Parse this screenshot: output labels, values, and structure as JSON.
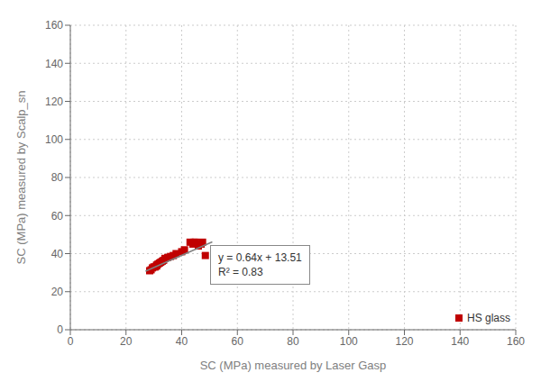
{
  "chart_data": {
    "type": "scatter",
    "xlabel": "SC (MPa) measured by Laser Gasp",
    "ylabel": "SC (MPa) measured by Scalp_sn",
    "series": [
      {
        "name": "HS glass",
        "type": "scatter",
        "marker": "square",
        "color": "#C00000",
        "x": [
          28.5,
          29,
          29.5,
          30,
          30.5,
          31,
          31,
          31.5,
          32,
          32.5,
          33,
          33.5,
          34,
          35,
          36,
          37,
          38,
          40,
          41,
          43,
          44,
          44.5,
          45,
          46,
          47,
          47.5,
          48.5
        ],
        "values": [
          31,
          31.5,
          32.5,
          33,
          33,
          33.5,
          34,
          34.5,
          35,
          35.5,
          36,
          36.5,
          37.5,
          38,
          38.5,
          39,
          40,
          41,
          42,
          46,
          45,
          46,
          46,
          44,
          45,
          46,
          39
        ]
      },
      {
        "type": "line",
        "line_style": "solid",
        "color": "#808080",
        "x": [
          27,
          51
        ],
        "values": [
          30.79,
          46.15
        ]
      }
    ],
    "annotation": "y = 0.64x + 13.51\nR² = 0.83",
    "xlim": [
      0,
      160
    ],
    "ylim": [
      0,
      160
    ],
    "xticks": [
      0,
      20,
      40,
      60,
      80,
      100,
      120,
      140,
      160
    ],
    "yticks": [
      0,
      20,
      40,
      60,
      80,
      100,
      120,
      140,
      160
    ],
    "grid": true,
    "legend": "lower right"
  }
}
